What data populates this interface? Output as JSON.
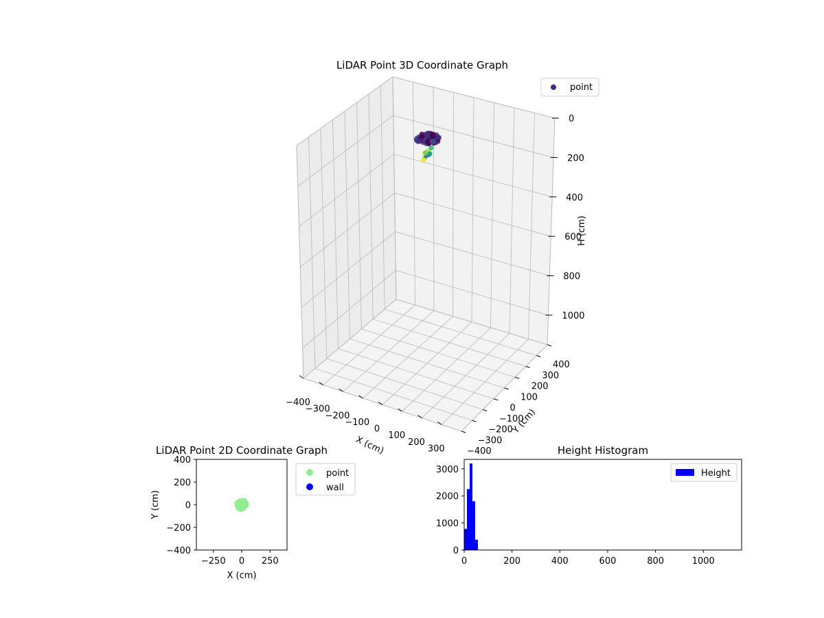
{
  "chart_data": [
    {
      "type": "scatter",
      "subtype": "scatter3d",
      "title": "LiDAR Point 3D Coordinate Graph",
      "xlabel": "X (cm)",
      "ylabel": "Y (cm)",
      "zlabel": "H (cm)",
      "x_ticks": [
        "−400",
        "−300",
        "−200",
        "−100",
        "0",
        "100",
        "200",
        "300"
      ],
      "y_ticks": [
        "−400",
        "−300",
        "−200",
        "−100",
        "0",
        "100",
        "200",
        "300",
        "400"
      ],
      "z_ticks": [
        "0",
        "200",
        "400",
        "600",
        "800",
        "1000"
      ],
      "xlim": [
        -400,
        400
      ],
      "ylim": [
        -400,
        400
      ],
      "zlim": [
        0,
        1150
      ],
      "z_inverted": true,
      "legend": {
        "entries": [
          "point"
        ],
        "placement": "top-right",
        "marker_color": "#482878"
      },
      "colormap": "viridis",
      "grid": true
    },
    {
      "type": "scatter",
      "title": "LiDAR Point 2D Coordinate Graph",
      "xlabel": "X (cm)",
      "ylabel": "Y (cm)",
      "x_ticks": [
        "−250",
        "0",
        "250"
      ],
      "y_ticks": [
        "400",
        "200",
        "0",
        "−200",
        "−400"
      ],
      "xlim": [
        -400,
        400
      ],
      "ylim": [
        -400,
        400
      ],
      "series": [
        {
          "name": "point",
          "color": "#90ee90",
          "center": [
            0,
            0
          ],
          "radius": 40
        },
        {
          "name": "wall",
          "color": "#0000ff",
          "values": []
        }
      ],
      "legend": {
        "placement": "outside-right"
      },
      "grid": false
    },
    {
      "type": "bar",
      "subtype": "histogram",
      "title": "Height Histogram",
      "x_ticks": [
        "0",
        "200",
        "400",
        "600",
        "800",
        "1000"
      ],
      "y_ticks": [
        "0",
        "1000",
        "2000",
        "3000"
      ],
      "xlim": [
        0,
        1160
      ],
      "ylim": [
        0,
        3350
      ],
      "bin_width": 11.5,
      "bins": [
        {
          "x0": 0,
          "count": 780
        },
        {
          "x0": 11.5,
          "count": 2250
        },
        {
          "x0": 23,
          "count": 3200
        },
        {
          "x0": 34.5,
          "count": 1800
        },
        {
          "x0": 46,
          "count": 380
        }
      ],
      "series": [
        {
          "name": "Height",
          "color": "#0000ff"
        }
      ],
      "legend": {
        "placement": "top-right"
      },
      "grid": false
    }
  ]
}
